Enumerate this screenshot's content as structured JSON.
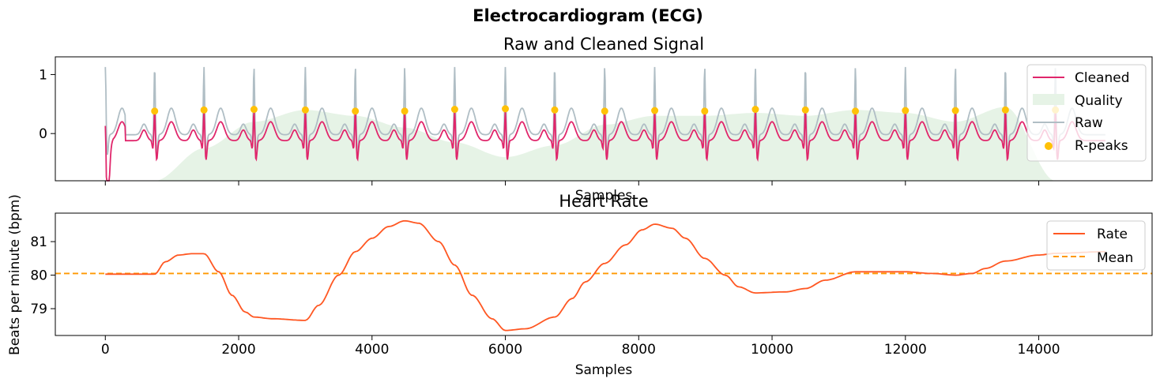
{
  "suptitle": "Electrocardiogram (ECG)",
  "chart_data": [
    {
      "type": "line",
      "title": "Raw and Cleaned Signal",
      "xlabel": "Samples",
      "ylabel": "",
      "xlim": [
        -750,
        15700
      ],
      "ylim": [
        -0.8,
        1.3
      ],
      "yticks": [
        0,
        1
      ],
      "xticks": [
        0,
        2000,
        4000,
        6000,
        8000,
        10000,
        12000,
        14000
      ],
      "xticklabels_shown": false,
      "legend": "upper right",
      "legend_entries": [
        "Cleaned",
        "Quality",
        "Raw",
        "R-peaks"
      ],
      "colors": {
        "cleaned": "#e0266b",
        "raw": "#b0bec5",
        "quality": "#e6f3e6",
        "rpeaks": "#ffc107"
      },
      "series": [
        {
          "name": "Raw",
          "description_key": "raw"
        },
        {
          "name": "Cleaned",
          "description_key": "cleaned"
        }
      ],
      "r_peaks": {
        "name": "R-peaks",
        "x": [
          740,
          1480,
          2230,
          3000,
          3750,
          4490,
          5240,
          6000,
          6740,
          7490,
          8240,
          8990,
          9750,
          10500,
          11250,
          12000,
          12750,
          13500,
          14250
        ],
        "y": [
          0.38,
          0.4,
          0.41,
          0.4,
          0.38,
          0.38,
          0.41,
          0.42,
          0.4,
          0.38,
          0.39,
          0.38,
          0.41,
          0.4,
          0.38,
          0.39,
          0.39,
          0.4,
          0.4
        ]
      },
      "quality": {
        "name": "Quality",
        "x": [
          740,
          1480,
          2230,
          3000,
          3750,
          4490,
          5240,
          6000,
          6740,
          7490,
          8240,
          8990,
          9750,
          10500,
          11250,
          12000,
          12750,
          13500,
          14250
        ],
        "y": [
          -0.8,
          -0.25,
          0.2,
          0.4,
          0.3,
          0.1,
          -0.15,
          -0.4,
          -0.2,
          0.15,
          0.3,
          0.3,
          0.35,
          0.3,
          0.4,
          0.35,
          0.2,
          0.45,
          -0.8
        ]
      }
    },
    {
      "type": "line",
      "title": "Heart Rate",
      "xlabel": "Samples",
      "ylabel": "Beats per minute (bpm)",
      "xlim": [
        -750,
        15700
      ],
      "ylim": [
        78.2,
        81.85
      ],
      "yticks": [
        79,
        80,
        81
      ],
      "xticks": [
        0,
        2000,
        4000,
        6000,
        8000,
        10000,
        12000,
        14000
      ],
      "legend": "upper right",
      "legend_entries": [
        "Rate",
        "Mean"
      ],
      "colors": {
        "rate": "#ff5722",
        "mean": "#ff9800"
      },
      "series": [
        {
          "name": "Rate",
          "x": [
            0,
            740,
            900,
            1100,
            1300,
            1480,
            1700,
            1900,
            2100,
            2230,
            2500,
            3000,
            3200,
            3500,
            3750,
            4000,
            4250,
            4490,
            4700,
            5000,
            5240,
            5500,
            5800,
            6000,
            6300,
            6740,
            7000,
            7200,
            7490,
            7800,
            8050,
            8240,
            8500,
            8700,
            8990,
            9300,
            9500,
            9750,
            10200,
            10500,
            10800,
            11250,
            11600,
            12000,
            12400,
            12750,
            13000,
            13200,
            13500,
            14000,
            14250,
            15000
          ],
          "y": [
            80.03,
            80.03,
            80.4,
            80.6,
            80.64,
            80.64,
            80.1,
            79.4,
            78.9,
            78.75,
            78.7,
            78.65,
            79.1,
            80.0,
            80.7,
            81.1,
            81.45,
            81.62,
            81.55,
            81.0,
            80.3,
            79.4,
            78.7,
            78.35,
            78.4,
            78.75,
            79.3,
            79.8,
            80.35,
            80.9,
            81.35,
            81.52,
            81.4,
            81.1,
            80.5,
            80.0,
            79.65,
            79.47,
            79.5,
            79.6,
            79.85,
            80.1,
            80.1,
            80.1,
            80.05,
            80.0,
            80.05,
            80.2,
            80.42,
            80.6,
            80.65,
            80.7
          ]
        }
      ],
      "mean": {
        "name": "Mean",
        "y": 80.05
      }
    }
  ]
}
